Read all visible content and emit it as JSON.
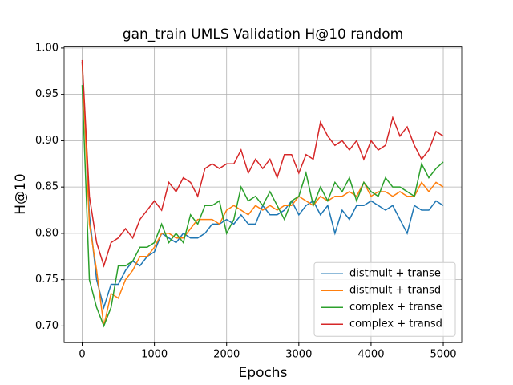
{
  "chart_data": {
    "type": "line",
    "title": "gan_train UMLS Validation H@10 random",
    "xlabel": "Epochs",
    "ylabel": "H@10",
    "x": [
      0,
      100,
      200,
      300,
      400,
      500,
      600,
      700,
      800,
      900,
      1000,
      1100,
      1200,
      1300,
      1400,
      1500,
      1600,
      1700,
      1800,
      1900,
      2000,
      2100,
      2200,
      2300,
      2400,
      2500,
      2600,
      2700,
      2800,
      2900,
      3000,
      3100,
      3200,
      3300,
      3400,
      3500,
      3600,
      3700,
      3800,
      3900,
      4000,
      4100,
      4200,
      4300,
      4400,
      4500,
      4600,
      4700,
      4800,
      4900,
      5000
    ],
    "series": [
      {
        "name": "distmult + transe",
        "color": "#1f77b4",
        "values": [
          0.985,
          0.82,
          0.75,
          0.72,
          0.745,
          0.745,
          0.76,
          0.77,
          0.765,
          0.775,
          0.78,
          0.8,
          0.795,
          0.79,
          0.8,
          0.795,
          0.795,
          0.8,
          0.81,
          0.81,
          0.815,
          0.81,
          0.82,
          0.81,
          0.81,
          0.83,
          0.82,
          0.82,
          0.825,
          0.835,
          0.82,
          0.83,
          0.835,
          0.82,
          0.83,
          0.8,
          0.825,
          0.815,
          0.83,
          0.83,
          0.835,
          0.83,
          0.825,
          0.83,
          0.815,
          0.8,
          0.83,
          0.825,
          0.825,
          0.835,
          0.83
        ]
      },
      {
        "name": "distmult + transd",
        "color": "#ff7f0e",
        "values": [
          0.985,
          0.81,
          0.76,
          0.7,
          0.735,
          0.73,
          0.75,
          0.76,
          0.775,
          0.775,
          0.785,
          0.8,
          0.8,
          0.795,
          0.795,
          0.805,
          0.815,
          0.815,
          0.815,
          0.81,
          0.825,
          0.83,
          0.825,
          0.82,
          0.83,
          0.825,
          0.83,
          0.825,
          0.83,
          0.83,
          0.84,
          0.835,
          0.83,
          0.84,
          0.835,
          0.84,
          0.84,
          0.845,
          0.84,
          0.855,
          0.84,
          0.845,
          0.845,
          0.84,
          0.845,
          0.84,
          0.84,
          0.855,
          0.845,
          0.855,
          0.85
        ]
      },
      {
        "name": "complex + transe",
        "color": "#2ca02c",
        "values": [
          0.96,
          0.75,
          0.72,
          0.7,
          0.72,
          0.765,
          0.765,
          0.77,
          0.785,
          0.785,
          0.79,
          0.81,
          0.79,
          0.8,
          0.79,
          0.82,
          0.81,
          0.83,
          0.83,
          0.835,
          0.8,
          0.815,
          0.85,
          0.835,
          0.84,
          0.83,
          0.845,
          0.83,
          0.815,
          0.835,
          0.84,
          0.865,
          0.83,
          0.85,
          0.835,
          0.855,
          0.845,
          0.86,
          0.835,
          0.855,
          0.845,
          0.84,
          0.86,
          0.85,
          0.85,
          0.845,
          0.84,
          0.875,
          0.86,
          0.87,
          0.877
        ]
      },
      {
        "name": "complex + transd",
        "color": "#d62728",
        "values": [
          0.987,
          0.84,
          0.79,
          0.765,
          0.79,
          0.795,
          0.805,
          0.795,
          0.815,
          0.825,
          0.835,
          0.825,
          0.855,
          0.845,
          0.86,
          0.855,
          0.84,
          0.87,
          0.875,
          0.87,
          0.875,
          0.875,
          0.89,
          0.865,
          0.88,
          0.87,
          0.88,
          0.86,
          0.885,
          0.885,
          0.865,
          0.885,
          0.88,
          0.92,
          0.905,
          0.895,
          0.9,
          0.89,
          0.9,
          0.88,
          0.9,
          0.89,
          0.895,
          0.925,
          0.905,
          0.915,
          0.895,
          0.88,
          0.89,
          0.91,
          0.905
        ]
      }
    ],
    "xlim": [
      -250,
      5255
    ],
    "ylim": [
      0.682,
      1.002
    ],
    "xticks": [
      0,
      1000,
      2000,
      3000,
      4000,
      5000
    ],
    "yticks": [
      {
        "value": 0.7,
        "label": "0.70"
      },
      0.75,
      {
        "value": 0.8,
        "label": "0.80"
      },
      0.85,
      {
        "value": 0.9,
        "label": "0.90"
      },
      0.95,
      {
        "value": 1.0,
        "label": "1.00"
      }
    ],
    "grid": true,
    "legend": "lower right"
  }
}
